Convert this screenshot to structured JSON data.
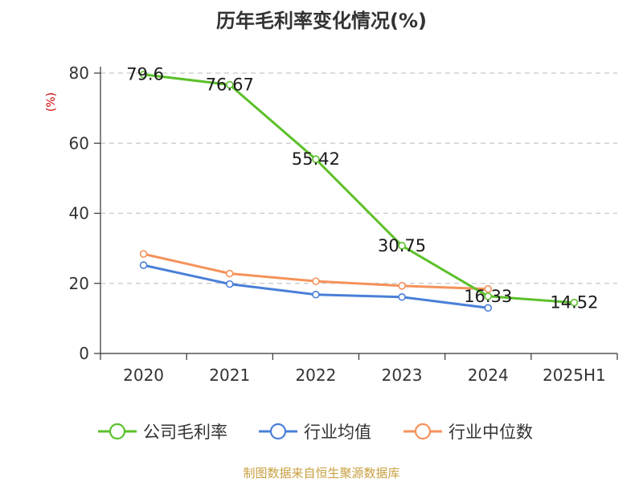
{
  "chart_data": {
    "type": "line",
    "title": "历年毛利率变化情况(%)",
    "ylabel": "(%)",
    "xlabel": "",
    "categories": [
      "2020",
      "2021",
      "2022",
      "2023",
      "2024",
      "2025H1"
    ],
    "ylim": [
      0,
      80
    ],
    "yticks": [
      0,
      20,
      40,
      60,
      80
    ],
    "grid": true,
    "legend_position": "bottom",
    "series": [
      {
        "name": "公司毛利率",
        "color": "#5cc02a",
        "values": [
          79.6,
          76.67,
          55.42,
          30.75,
          16.33,
          14.52
        ],
        "labels": [
          "79.6",
          "76.67",
          "55.42",
          "30.75",
          "16.33",
          "14.52"
        ]
      },
      {
        "name": "行业均值",
        "color": "#4a7fd8",
        "values": [
          25.2,
          19.8,
          16.8,
          16.1,
          13.0,
          null
        ]
      },
      {
        "name": "行业中位数",
        "color": "#f5925a",
        "values": [
          28.4,
          22.8,
          20.6,
          19.3,
          18.4,
          null
        ]
      }
    ]
  },
  "source": "制图数据来自恒生聚源数据库"
}
